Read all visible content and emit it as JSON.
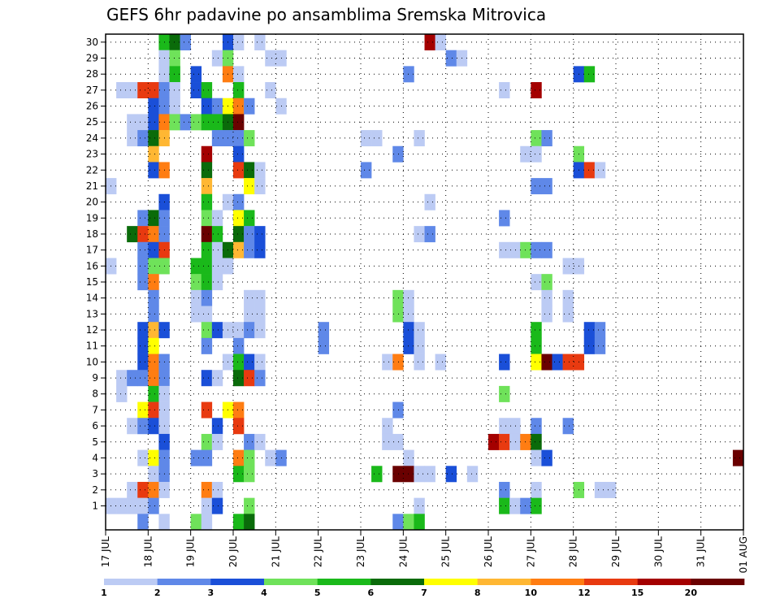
{
  "chart_data": {
    "type": "heatmap",
    "title": "GEFS 6hr padavine po ansamblima Sremska Mitrovica",
    "x_tick_labels": [
      "17 JUL",
      "18 JUL",
      "19 JUL",
      "20 JUL",
      "21 JUL",
      "22 JUL",
      "23 JUL",
      "24 JUL",
      "25 JUL",
      "26 JUL",
      "27 JUL",
      "28 JUL",
      "29 JUL",
      "30 JUL",
      "31 JUL",
      "01 AUG"
    ],
    "x_steps_per_day": 4,
    "x_step_hours": 6,
    "y_tick_labels": [
      "1",
      "2",
      "3",
      "4",
      "5",
      "6",
      "7",
      "8",
      "9",
      "10",
      "11",
      "12",
      "13",
      "14",
      "15",
      "16",
      "17",
      "18",
      "19",
      "20",
      "21",
      "22",
      "23",
      "24",
      "25",
      "26",
      "27",
      "28",
      "29",
      "30"
    ],
    "y_range": [
      0,
      30
    ],
    "grid": true,
    "colorbar": {
      "labels": [
        "1",
        "2",
        "3",
        "4",
        "5",
        "6",
        "7",
        "8",
        "10",
        "12",
        "15",
        "20"
      ],
      "colors": [
        "#bccbf4",
        "#5f88e8",
        "#1a4fd8",
        "#6fe25a",
        "#1ab91a",
        "#0a6b0a",
        "#ffff00",
        "#ffb733",
        "#ff7d12",
        "#e83a10",
        "#a40000",
        "#6a0000"
      ]
    },
    "cells": [
      {
        "m": 30,
        "c": [
          [
            5,
            4
          ],
          [
            6,
            5
          ],
          [
            7,
            1
          ],
          [
            11,
            2
          ],
          [
            12,
            0
          ],
          [
            14,
            0
          ],
          [
            30,
            10
          ],
          [
            31,
            0
          ]
        ]
      },
      {
        "m": 29,
        "c": [
          [
            5,
            0
          ],
          [
            6,
            3
          ],
          [
            10,
            0
          ],
          [
            11,
            3
          ],
          [
            15,
            0
          ],
          [
            16,
            0
          ],
          [
            32,
            1
          ],
          [
            33,
            0
          ]
        ]
      },
      {
        "m": 28,
        "c": [
          [
            5,
            0
          ],
          [
            6,
            4
          ],
          [
            8,
            2
          ],
          [
            11,
            8
          ],
          [
            12,
            0
          ],
          [
            28,
            1
          ],
          [
            44,
            2
          ],
          [
            45,
            4
          ]
        ]
      },
      {
        "m": 27,
        "c": [
          [
            1,
            0
          ],
          [
            2,
            0
          ],
          [
            3,
            9
          ],
          [
            4,
            9
          ],
          [
            5,
            1
          ],
          [
            6,
            0
          ],
          [
            8,
            2
          ],
          [
            9,
            4
          ],
          [
            12,
            4
          ],
          [
            15,
            0
          ],
          [
            37,
            0
          ],
          [
            40,
            10
          ]
        ]
      },
      {
        "m": 26,
        "c": [
          [
            4,
            2
          ],
          [
            5,
            1
          ],
          [
            6,
            0
          ],
          [
            9,
            2
          ],
          [
            10,
            1
          ],
          [
            11,
            6
          ],
          [
            12,
            8
          ],
          [
            13,
            1
          ],
          [
            16,
            0
          ]
        ]
      },
      {
        "m": 25,
        "c": [
          [
            2,
            0
          ],
          [
            3,
            0
          ],
          [
            4,
            2
          ],
          [
            5,
            8
          ],
          [
            6,
            3
          ],
          [
            7,
            1
          ],
          [
            8,
            3
          ],
          [
            9,
            4
          ],
          [
            10,
            4
          ],
          [
            11,
            5
          ],
          [
            12,
            11
          ]
        ]
      },
      {
        "m": 24,
        "c": [
          [
            2,
            0
          ],
          [
            3,
            1
          ],
          [
            4,
            5
          ],
          [
            5,
            7
          ],
          [
            10,
            1
          ],
          [
            11,
            1
          ],
          [
            12,
            1
          ],
          [
            13,
            3
          ],
          [
            24,
            0
          ],
          [
            25,
            0
          ],
          [
            29,
            0
          ],
          [
            40,
            3
          ],
          [
            41,
            1
          ]
        ]
      },
      {
        "m": 23,
        "c": [
          [
            4,
            7
          ],
          [
            9,
            10
          ],
          [
            12,
            2
          ],
          [
            27,
            1
          ],
          [
            39,
            0
          ],
          [
            40,
            0
          ],
          [
            44,
            3
          ]
        ]
      },
      {
        "m": 22,
        "c": [
          [
            4,
            2
          ],
          [
            5,
            8
          ],
          [
            9,
            5
          ],
          [
            12,
            9
          ],
          [
            13,
            5
          ],
          [
            14,
            0
          ],
          [
            24,
            1
          ],
          [
            44,
            2
          ],
          [
            45,
            9
          ],
          [
            46,
            0
          ]
        ]
      },
      {
        "m": 21,
        "c": [
          [
            0,
            0
          ],
          [
            9,
            7
          ],
          [
            13,
            6
          ],
          [
            14,
            0
          ],
          [
            40,
            1
          ],
          [
            41,
            1
          ]
        ]
      },
      {
        "m": 20,
        "c": [
          [
            5,
            2
          ],
          [
            9,
            4
          ],
          [
            11,
            0
          ],
          [
            12,
            1
          ],
          [
            30,
            0
          ]
        ]
      },
      {
        "m": 19,
        "c": [
          [
            3,
            1
          ],
          [
            4,
            5
          ],
          [
            5,
            1
          ],
          [
            9,
            3
          ],
          [
            10,
            0
          ],
          [
            12,
            6
          ],
          [
            13,
            4
          ],
          [
            37,
            1
          ]
        ]
      },
      {
        "m": 18,
        "c": [
          [
            2,
            5
          ],
          [
            3,
            9
          ],
          [
            4,
            8
          ],
          [
            5,
            1
          ],
          [
            9,
            11
          ],
          [
            10,
            4
          ],
          [
            12,
            5
          ],
          [
            13,
            1
          ],
          [
            14,
            2
          ],
          [
            29,
            0
          ],
          [
            30,
            1
          ]
        ]
      },
      {
        "m": 17,
        "c": [
          [
            3,
            1
          ],
          [
            4,
            2
          ],
          [
            5,
            9
          ],
          [
            9,
            4
          ],
          [
            10,
            0
          ],
          [
            11,
            5
          ],
          [
            12,
            7
          ],
          [
            13,
            1
          ],
          [
            14,
            2
          ],
          [
            37,
            0
          ],
          [
            38,
            0
          ],
          [
            39,
            3
          ],
          [
            40,
            1
          ],
          [
            41,
            1
          ]
        ]
      },
      {
        "m": 16,
        "c": [
          [
            0,
            0
          ],
          [
            3,
            1
          ],
          [
            4,
            3
          ],
          [
            5,
            3
          ],
          [
            8,
            4
          ],
          [
            9,
            4
          ],
          [
            10,
            0
          ],
          [
            11,
            0
          ],
          [
            43,
            0
          ],
          [
            44,
            0
          ]
        ]
      },
      {
        "m": 15,
        "c": [
          [
            3,
            1
          ],
          [
            4,
            8
          ],
          [
            8,
            3
          ],
          [
            9,
            4
          ],
          [
            10,
            0
          ],
          [
            40,
            0
          ],
          [
            41,
            3
          ]
        ]
      },
      {
        "m": 14,
        "c": [
          [
            4,
            1
          ],
          [
            8,
            0
          ],
          [
            9,
            1
          ],
          [
            13,
            0
          ],
          [
            14,
            0
          ],
          [
            27,
            3
          ],
          [
            28,
            0
          ],
          [
            41,
            0
          ],
          [
            43,
            0
          ]
        ]
      },
      {
        "m": 13,
        "c": [
          [
            4,
            1
          ],
          [
            8,
            0
          ],
          [
            9,
            0
          ],
          [
            13,
            0
          ],
          [
            14,
            0
          ],
          [
            27,
            3
          ],
          [
            28,
            0
          ],
          [
            41,
            0
          ],
          [
            43,
            0
          ]
        ]
      },
      {
        "m": 12,
        "c": [
          [
            3,
            2
          ],
          [
            4,
            7
          ],
          [
            5,
            2
          ],
          [
            9,
            3
          ],
          [
            10,
            2
          ],
          [
            11,
            0
          ],
          [
            12,
            0
          ],
          [
            13,
            1
          ],
          [
            14,
            0
          ],
          [
            20,
            1
          ],
          [
            28,
            2
          ],
          [
            29,
            0
          ],
          [
            40,
            4
          ],
          [
            45,
            2
          ],
          [
            46,
            1
          ]
        ]
      },
      {
        "m": 11,
        "c": [
          [
            3,
            2
          ],
          [
            4,
            6
          ],
          [
            9,
            1
          ],
          [
            12,
            1
          ],
          [
            20,
            1
          ],
          [
            28,
            2
          ],
          [
            29,
            0
          ],
          [
            40,
            4
          ],
          [
            45,
            2
          ],
          [
            46,
            1
          ]
        ]
      },
      {
        "m": 10,
        "c": [
          [
            3,
            2
          ],
          [
            4,
            8
          ],
          [
            5,
            1
          ],
          [
            11,
            0
          ],
          [
            12,
            4
          ],
          [
            13,
            2
          ],
          [
            14,
            0
          ],
          [
            26,
            0
          ],
          [
            27,
            8
          ],
          [
            29,
            0
          ],
          [
            31,
            0
          ],
          [
            37,
            2
          ],
          [
            40,
            6
          ],
          [
            41,
            11
          ],
          [
            42,
            2
          ],
          [
            43,
            9
          ],
          [
            44,
            9
          ]
        ]
      },
      {
        "m": 9,
        "c": [
          [
            1,
            0
          ],
          [
            2,
            1
          ],
          [
            3,
            1
          ],
          [
            4,
            8
          ],
          [
            5,
            1
          ],
          [
            9,
            2
          ],
          [
            10,
            0
          ],
          [
            12,
            5
          ],
          [
            13,
            9
          ],
          [
            14,
            1
          ]
        ]
      },
      {
        "m": 8,
        "c": [
          [
            1,
            0
          ],
          [
            4,
            4
          ],
          [
            5,
            0
          ],
          [
            37,
            3
          ]
        ]
      },
      {
        "m": 7,
        "c": [
          [
            3,
            6
          ],
          [
            4,
            9
          ],
          [
            5,
            0
          ],
          [
            9,
            9
          ],
          [
            11,
            6
          ],
          [
            12,
            8
          ],
          [
            27,
            1
          ]
        ]
      },
      {
        "m": 6,
        "c": [
          [
            2,
            0
          ],
          [
            3,
            1
          ],
          [
            4,
            2
          ],
          [
            5,
            0
          ],
          [
            10,
            2
          ],
          [
            12,
            9
          ],
          [
            26,
            0
          ],
          [
            37,
            0
          ],
          [
            38,
            0
          ],
          [
            40,
            1
          ],
          [
            43,
            1
          ]
        ]
      },
      {
        "m": 5,
        "c": [
          [
            5,
            2
          ],
          [
            9,
            3
          ],
          [
            10,
            0
          ],
          [
            13,
            1
          ],
          [
            14,
            0
          ],
          [
            26,
            0
          ],
          [
            27,
            0
          ],
          [
            36,
            10
          ],
          [
            37,
            9
          ],
          [
            38,
            0
          ],
          [
            39,
            8
          ],
          [
            40,
            5
          ]
        ]
      },
      {
        "m": 4,
        "c": [
          [
            3,
            0
          ],
          [
            4,
            6
          ],
          [
            5,
            1
          ],
          [
            8,
            1
          ],
          [
            9,
            1
          ],
          [
            12,
            8
          ],
          [
            13,
            3
          ],
          [
            15,
            0
          ],
          [
            16,
            1
          ],
          [
            28,
            0
          ],
          [
            40,
            0
          ],
          [
            41,
            2
          ],
          [
            59,
            11
          ]
        ]
      },
      {
        "m": 3,
        "c": [
          [
            4,
            0
          ],
          [
            5,
            1
          ],
          [
            12,
            4
          ],
          [
            13,
            3
          ],
          [
            25,
            4
          ],
          [
            27,
            11
          ],
          [
            28,
            11
          ],
          [
            29,
            0
          ],
          [
            30,
            0
          ],
          [
            32,
            2
          ],
          [
            34,
            0
          ]
        ]
      },
      {
        "m": 2,
        "c": [
          [
            2,
            0
          ],
          [
            3,
            9
          ],
          [
            4,
            8
          ],
          [
            5,
            0
          ],
          [
            9,
            8
          ],
          [
            10,
            0
          ],
          [
            37,
            1
          ],
          [
            40,
            0
          ],
          [
            44,
            3
          ],
          [
            46,
            0
          ],
          [
            47,
            0
          ]
        ]
      },
      {
        "m": 1,
        "c": [
          [
            0,
            0
          ],
          [
            1,
            0
          ],
          [
            2,
            0
          ],
          [
            3,
            0
          ],
          [
            4,
            1
          ],
          [
            9,
            0
          ],
          [
            10,
            2
          ],
          [
            13,
            3
          ],
          [
            29,
            0
          ],
          [
            37,
            4
          ],
          [
            38,
            0
          ],
          [
            39,
            1
          ],
          [
            40,
            4
          ]
        ]
      },
      {
        "m": 0,
        "c": [
          [
            3,
            1
          ],
          [
            5,
            0
          ],
          [
            8,
            3
          ],
          [
            9,
            0
          ],
          [
            12,
            4
          ],
          [
            13,
            5
          ],
          [
            27,
            1
          ],
          [
            28,
            3
          ],
          [
            29,
            4
          ]
        ]
      }
    ]
  }
}
